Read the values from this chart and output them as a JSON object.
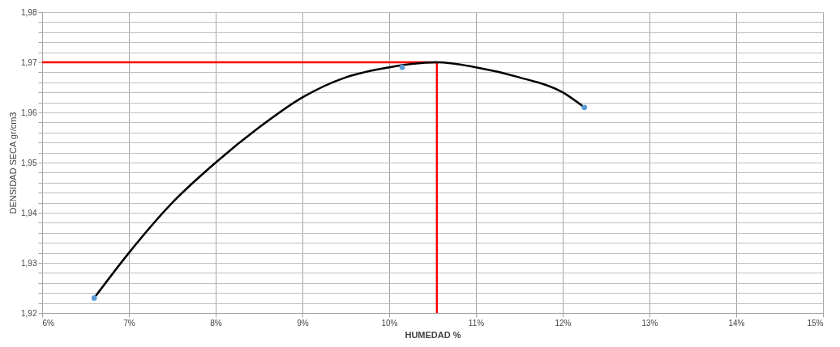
{
  "chart_data": {
    "type": "line",
    "xlabel": "HUMEDAD %",
    "ylabel": "DENSIDAD SECA gr/cm3",
    "xlim": [
      6,
      15
    ],
    "xticks": [
      {
        "value": 6,
        "label": "6%"
      },
      {
        "value": 7,
        "label": "7%"
      },
      {
        "value": 8,
        "label": "8%"
      },
      {
        "value": 9,
        "label": "9%"
      },
      {
        "value": 10,
        "label": "10%"
      },
      {
        "value": 11,
        "label": "11%"
      },
      {
        "value": 12,
        "label": "12%"
      },
      {
        "value": 13,
        "label": "13%"
      },
      {
        "value": 14,
        "label": "14%"
      },
      {
        "value": 15,
        "label": "15%"
      }
    ],
    "ylim": [
      1.92,
      1.98
    ],
    "yticks": [
      {
        "value": 1.92,
        "label": "1,92"
      },
      {
        "value": 1.922,
        "label": null
      },
      {
        "value": 1.924,
        "label": null
      },
      {
        "value": 1.926,
        "label": null
      },
      {
        "value": 1.928,
        "label": null
      },
      {
        "value": 1.93,
        "label": "1,93"
      },
      {
        "value": 1.932,
        "label": null
      },
      {
        "value": 1.934,
        "label": null
      },
      {
        "value": 1.936,
        "label": null
      },
      {
        "value": 1.938,
        "label": null
      },
      {
        "value": 1.94,
        "label": "1,94"
      },
      {
        "value": 1.942,
        "label": null
      },
      {
        "value": 1.944,
        "label": null
      },
      {
        "value": 1.946,
        "label": null
      },
      {
        "value": 1.948,
        "label": null
      },
      {
        "value": 1.95,
        "label": "1,95"
      },
      {
        "value": 1.952,
        "label": null
      },
      {
        "value": 1.954,
        "label": null
      },
      {
        "value": 1.956,
        "label": null
      },
      {
        "value": 1.958,
        "label": null
      },
      {
        "value": 1.96,
        "label": "1,96"
      },
      {
        "value": 1.962,
        "label": null
      },
      {
        "value": 1.964,
        "label": null
      },
      {
        "value": 1.966,
        "label": null
      },
      {
        "value": 1.968,
        "label": null
      },
      {
        "value": 1.97,
        "label": "1,97"
      },
      {
        "value": 1.972,
        "label": null
      },
      {
        "value": 1.974,
        "label": null
      },
      {
        "value": 1.976,
        "label": null
      },
      {
        "value": 1.978,
        "label": null
      },
      {
        "value": 1.98,
        "label": "1,98"
      }
    ],
    "grid": true,
    "series": [
      {
        "type": "line",
        "color": "#000000",
        "marker": "none",
        "x": [
          6.6,
          7,
          7.5,
          8,
          8.5,
          9,
          9.5,
          10,
          10.55,
          11,
          11.5,
          12,
          12.25
        ],
        "values": [
          1.923,
          1.932,
          1.942,
          1.95,
          1.957,
          1.963,
          1.967,
          1.969,
          1.97,
          1.969,
          1.967,
          1.964,
          1.961
        ]
      },
      {
        "type": "scatter",
        "color": "#5b9bd5",
        "marker": "circle",
        "x": [
          6.6,
          10.15,
          12.25
        ],
        "values": [
          1.923,
          1.969,
          1.961
        ]
      }
    ],
    "ref_lines": [
      {
        "axis": "y",
        "value": 1.97,
        "color": "#ff0000"
      },
      {
        "axis": "x",
        "value": 10.55,
        "color": "#ff0000"
      }
    ]
  }
}
